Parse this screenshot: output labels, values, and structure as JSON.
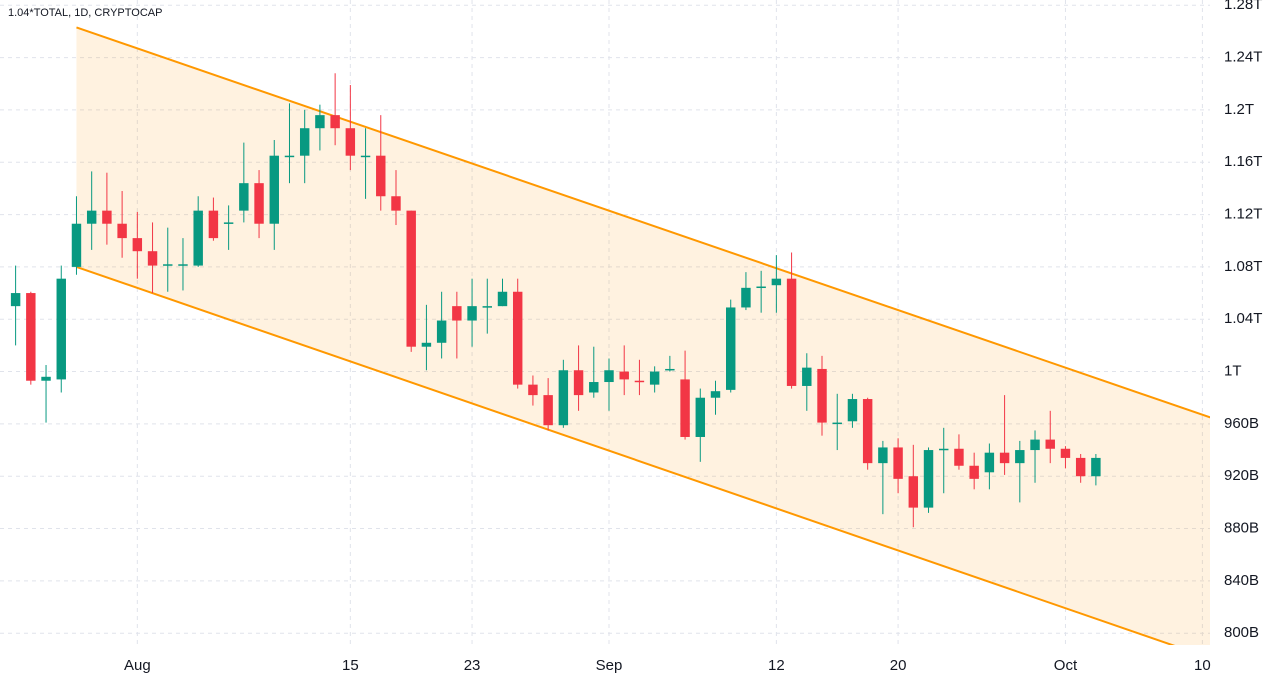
{
  "chart_data": {
    "type": "candlestick",
    "title": "1.04*TOTAL, 1D, CRYPTOCAP",
    "up_color": "#089981",
    "down_color": "#f23645",
    "categories": [
      null,
      null,
      null,
      null,
      null,
      null,
      null,
      null,
      "Aug",
      null,
      null,
      null,
      null,
      null,
      null,
      null,
      null,
      null,
      null,
      null,
      null,
      null,
      "15",
      null,
      null,
      null,
      null,
      null,
      null,
      null,
      "23",
      null,
      null,
      null,
      null,
      null,
      null,
      null,
      null,
      "Sep",
      null,
      null,
      null,
      null,
      null,
      null,
      null,
      null,
      null,
      null,
      "12",
      null,
      null,
      null,
      null,
      null,
      null,
      null,
      "20",
      null,
      null,
      null,
      null,
      null,
      null,
      null,
      null,
      null,
      null,
      "Oct",
      null,
      null,
      null,
      null,
      null,
      null,
      null,
      null,
      "10"
    ],
    "open": [
      1050,
      1060,
      993,
      994,
      1080,
      1113,
      1123,
      1113,
      1102,
      1092,
      1081,
      1081,
      1081,
      1123,
      1113,
      1123,
      1144,
      1113,
      1164,
      1165,
      1186,
      1196,
      1186,
      1164,
      1165,
      1134,
      1123,
      1019,
      1022,
      1050,
      1039,
      1049,
      1050,
      1061,
      990,
      982,
      959,
      1001,
      984,
      992,
      1000,
      993,
      990,
      1001,
      994,
      950,
      980,
      986,
      1049,
      1064,
      1066,
      1071,
      989,
      1002,
      960,
      962,
      979,
      930,
      942,
      920,
      896,
      940,
      941,
      928,
      923,
      938,
      930,
      940,
      948,
      941,
      934,
      920,
      null,
      null,
      null,
      null,
      null,
      null,
      null
    ],
    "high": [
      1081,
      1061,
      1005,
      1081,
      1134,
      1153,
      1152,
      1138,
      1122,
      1114,
      1110,
      1102,
      1134,
      1133,
      1127,
      1175,
      1154,
      1177,
      1205,
      1200,
      1204,
      1228,
      1219,
      1186,
      1196,
      1154,
      1123,
      1051,
      1061,
      1061,
      1071,
      1071,
      1071,
      1071,
      997,
      995,
      1009,
      1020,
      1019,
      1010,
      1020,
      1009,
      1004,
      1012,
      1016,
      987,
      993,
      1055,
      1076,
      1077,
      1089,
      1091,
      1014,
      1012,
      983,
      983,
      980,
      947,
      949,
      944,
      942,
      957,
      952,
      938,
      945,
      982,
      947,
      955,
      970,
      943,
      937,
      937,
      null,
      null,
      null,
      null,
      null,
      null,
      null
    ],
    "low": [
      1020,
      990,
      961,
      984,
      1074,
      1093,
      1097,
      1087,
      1071,
      1060,
      1061,
      1062,
      1080,
      1100,
      1093,
      1114,
      1102,
      1093,
      1144,
      1144,
      1169,
      1173,
      1154,
      1132,
      1123,
      1112,
      1015,
      1001,
      1010,
      1010,
      1019,
      1029,
      1050,
      987,
      974,
      955,
      957,
      970,
      980,
      970,
      982,
      982,
      984,
      1000,
      948,
      931,
      967,
      984,
      1047,
      1045,
      1045,
      987,
      970,
      951,
      940,
      957,
      925,
      891,
      907,
      881,
      892,
      907,
      925,
      910,
      910,
      921,
      900,
      915,
      930,
      926,
      915,
      913,
      null,
      null,
      null,
      null,
      null,
      null,
      null
    ],
    "close": [
      1060,
      993,
      996,
      1071,
      1113,
      1123,
      1113,
      1102,
      1092,
      1081,
      1082,
      1082,
      1123,
      1102,
      1114,
      1144,
      1113,
      1165,
      1165,
      1186,
      1196,
      1186,
      1165,
      1165,
      1134,
      1123,
      1019,
      1022,
      1039,
      1039,
      1050,
      1050,
      1061,
      990,
      982,
      959,
      1001,
      982,
      992,
      1001,
      994,
      992,
      1000,
      1002,
      950,
      980,
      985,
      1049,
      1064,
      1065,
      1071,
      989,
      1003,
      961,
      961,
      979,
      930,
      942,
      918,
      896,
      940,
      941,
      928,
      918,
      938,
      930,
      940,
      948,
      941,
      934,
      920,
      934,
      null,
      null,
      null,
      null,
      null,
      null,
      null
    ],
    "channel": {
      "x": [
        4,
        79
      ],
      "upper": [
        1263,
        963
      ],
      "lower": [
        1080,
        779
      ],
      "color": "#ff9800"
    },
    "ylim": [
      791,
      1284
    ],
    "yticks": [
      {
        "value": 1280,
        "label": "1.28T"
      },
      {
        "value": 1240,
        "label": "1.24T"
      },
      {
        "value": 1200,
        "label": "1.2T"
      },
      {
        "value": 1160,
        "label": "1.16T"
      },
      {
        "value": 1120,
        "label": "1.12T"
      },
      {
        "value": 1080,
        "label": "1.08T"
      },
      {
        "value": 1040,
        "label": "1.04T"
      },
      {
        "value": 1000,
        "label": "1T"
      },
      {
        "value": 960,
        "label": "960B"
      },
      {
        "value": 920,
        "label": "920B"
      },
      {
        "value": 880,
        "label": "880B"
      },
      {
        "value": 840,
        "label": "840B"
      },
      {
        "value": 800,
        "label": "800B"
      }
    ],
    "grid": true
  }
}
